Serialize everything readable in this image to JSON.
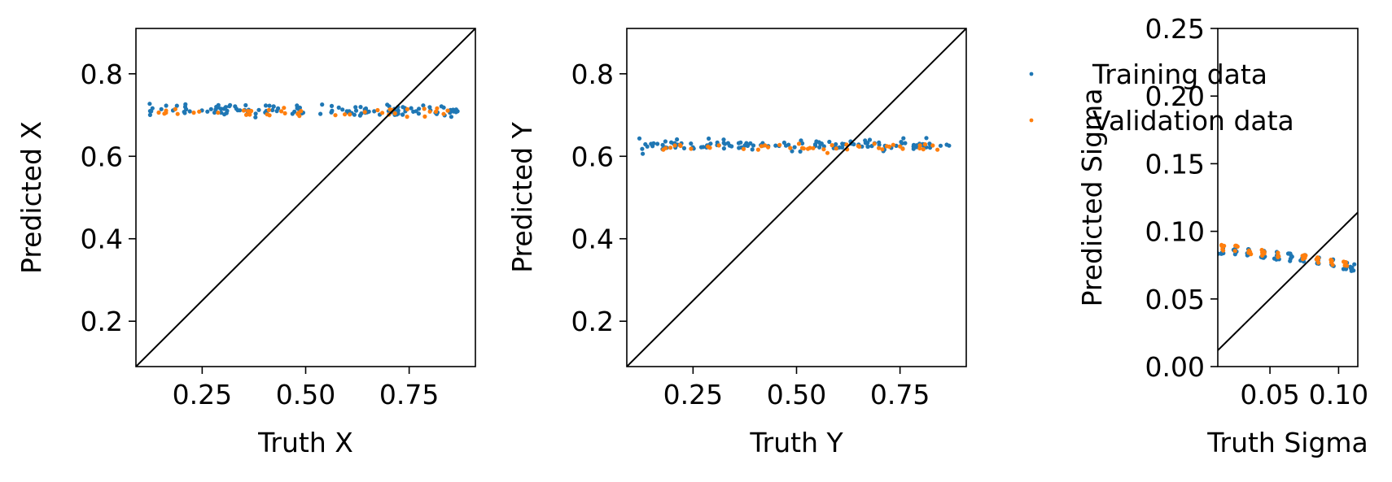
{
  "colors": {
    "training": "#1f77b4",
    "validation": "#ff7f0e",
    "identity_line": "#000000"
  },
  "legend": {
    "placement": "right of second panel, overlapping third panel",
    "entries": [
      {
        "label": "Training data",
        "color": "#1f77b4"
      },
      {
        "label": "Validation data",
        "color": "#ff7f0e"
      }
    ]
  },
  "chart_data": [
    {
      "type": "scatter",
      "xlabel": "Truth X",
      "ylabel": "Predicted X",
      "xlim": [
        0.09,
        0.91
      ],
      "ylim": [
        0.09,
        0.91
      ],
      "xticks": [
        0.25,
        0.5,
        0.75
      ],
      "xtick_labels": [
        "0.25",
        "0.50",
        "0.75"
      ],
      "yticks": [
        0.2,
        0.4,
        0.6,
        0.8
      ],
      "ytick_labels": [
        "0.2",
        "0.4",
        "0.6",
        "0.8"
      ],
      "identity_line": true,
      "grid": false,
      "series": [
        {
          "name": "Training data",
          "color": "#1f77b4",
          "x_range": [
            0.12,
            0.87
          ],
          "y_center": 0.712,
          "y_spread": 0.012,
          "count": 130
        },
        {
          "name": "Validation data",
          "color": "#ff7f0e",
          "x_range": [
            0.14,
            0.86
          ],
          "y_center": 0.707,
          "y_spread": 0.008,
          "count": 45
        }
      ]
    },
    {
      "type": "scatter",
      "xlabel": "Truth Y",
      "ylabel": "Predicted Y",
      "xlim": [
        0.09,
        0.91
      ],
      "ylim": [
        0.09,
        0.91
      ],
      "xticks": [
        0.25,
        0.5,
        0.75
      ],
      "xtick_labels": [
        "0.25",
        "0.50",
        "0.75"
      ],
      "yticks": [
        0.2,
        0.4,
        0.6,
        0.8
      ],
      "ytick_labels": [
        "0.2",
        "0.4",
        "0.6",
        "0.8"
      ],
      "identity_line": true,
      "grid": false,
      "series": [
        {
          "name": "Training data",
          "color": "#1f77b4",
          "x_range": [
            0.12,
            0.87
          ],
          "y_center": 0.627,
          "y_spread": 0.01,
          "count": 130
        },
        {
          "name": "Validation data",
          "color": "#ff7f0e",
          "x_range": [
            0.14,
            0.86
          ],
          "y_center": 0.622,
          "y_spread": 0.008,
          "count": 45
        }
      ]
    },
    {
      "type": "scatter",
      "xlabel": "Truth Sigma",
      "ylabel": "Predicted Sigma",
      "xlim": [
        0.012,
        0.114
      ],
      "ylim": [
        0.0,
        0.25
      ],
      "xticks": [
        0.05,
        0.1
      ],
      "xtick_labels": [
        "0.05",
        "0.10"
      ],
      "yticks": [
        0.0,
        0.05,
        0.1,
        0.15,
        0.2,
        0.25
      ],
      "ytick_labels": [
        "0.00",
        "0.05",
        "0.10",
        "0.15",
        "0.20",
        "0.25"
      ],
      "identity_line": true,
      "grid": false,
      "series": [
        {
          "name": "Training data",
          "color": "#1f77b4",
          "sigma_levels": [
            0.015,
            0.025,
            0.035,
            0.045,
            0.055,
            0.065,
            0.075,
            0.085,
            0.095,
            0.105,
            0.11
          ],
          "y_values": [
            0.086,
            0.085,
            0.084,
            0.083,
            0.082,
            0.081,
            0.08,
            0.078,
            0.077,
            0.075,
            0.073
          ],
          "y_spread": 0.005
        },
        {
          "name": "Validation data",
          "color": "#ff7f0e",
          "sigma_levels": [
            0.015,
            0.025,
            0.035,
            0.045,
            0.055,
            0.075,
            0.085,
            0.095,
            0.105
          ],
          "y_values": [
            0.088,
            0.087,
            0.085,
            0.084,
            0.083,
            0.081,
            0.079,
            0.077,
            0.076
          ],
          "y_spread": 0.004
        }
      ]
    }
  ]
}
